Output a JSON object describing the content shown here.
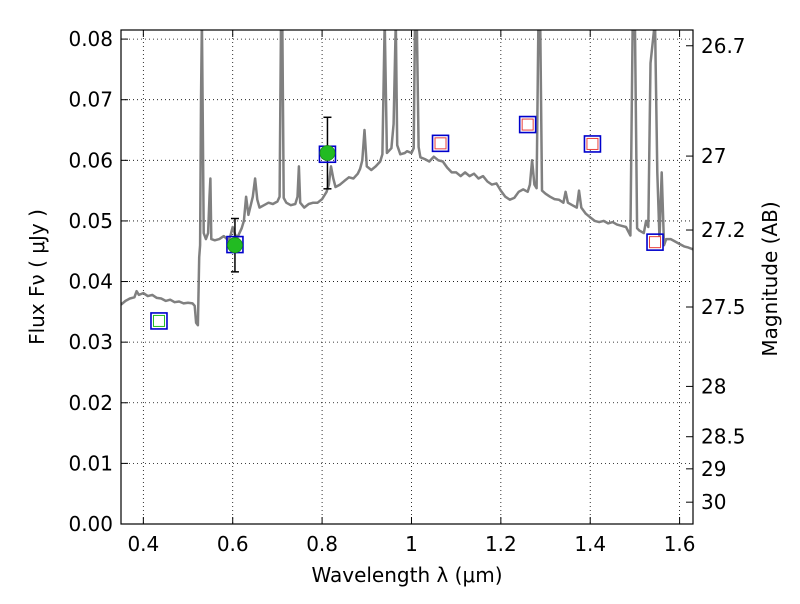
{
  "chart_data": {
    "type": "scatter",
    "xlabel": "Wavelength  λ (μm)",
    "ylabel": "Flux  Fν  ( μJy )",
    "ylabel_right": "Magnitude (AB)",
    "xlim": [
      0.35,
      1.63
    ],
    "ylim": [
      0.0,
      0.0815
    ],
    "grid": true,
    "x_ticks": [
      {
        "value": 0.4,
        "label": "0.4"
      },
      {
        "value": 0.6,
        "label": "0.6"
      },
      {
        "value": 0.8,
        "label": "0.8"
      },
      {
        "value": 1.0,
        "label": "1"
      },
      {
        "value": 1.2,
        "label": "1.2"
      },
      {
        "value": 1.4,
        "label": "1.4"
      },
      {
        "value": 1.6,
        "label": "1.6"
      }
    ],
    "y_ticks": [
      {
        "value": 0.0,
        "label": "0.00"
      },
      {
        "value": 0.01,
        "label": "0.01"
      },
      {
        "value": 0.02,
        "label": "0.02"
      },
      {
        "value": 0.03,
        "label": "0.03"
      },
      {
        "value": 0.04,
        "label": "0.04"
      },
      {
        "value": 0.05,
        "label": "0.05"
      },
      {
        "value": 0.06,
        "label": "0.06"
      },
      {
        "value": 0.07,
        "label": "0.07"
      },
      {
        "value": 0.08,
        "label": "0.08"
      }
    ],
    "right_ticks": [
      {
        "flux": 0.0789,
        "label": "26.7"
      },
      {
        "flux": 0.0607,
        "label": "27"
      },
      {
        "flux": 0.0485,
        "label": "27.2"
      },
      {
        "flux": 0.0358,
        "label": "27.5"
      },
      {
        "flux": 0.0227,
        "label": "28"
      },
      {
        "flux": 0.0144,
        "label": "28.5"
      },
      {
        "flux": 0.0091,
        "label": "29"
      },
      {
        "flux": 0.0036,
        "label": "30"
      }
    ],
    "model_spectrum": {
      "color": "#808080",
      "points": [
        [
          0.35,
          0.0362
        ],
        [
          0.36,
          0.0368
        ],
        [
          0.37,
          0.0372
        ],
        [
          0.38,
          0.0374
        ],
        [
          0.385,
          0.0384
        ],
        [
          0.39,
          0.0378
        ],
        [
          0.4,
          0.0381
        ],
        [
          0.41,
          0.0376
        ],
        [
          0.42,
          0.0378
        ],
        [
          0.43,
          0.0373
        ],
        [
          0.44,
          0.0372
        ],
        [
          0.45,
          0.0368
        ],
        [
          0.46,
          0.037
        ],
        [
          0.47,
          0.0366
        ],
        [
          0.48,
          0.0367
        ],
        [
          0.49,
          0.0364
        ],
        [
          0.5,
          0.0365
        ],
        [
          0.51,
          0.0364
        ],
        [
          0.515,
          0.036
        ],
        [
          0.518,
          0.0332
        ],
        [
          0.522,
          0.0328
        ],
        [
          0.525,
          0.044
        ],
        [
          0.527,
          0.046
        ],
        [
          0.529,
          0.07
        ],
        [
          0.531,
          0.083
        ],
        [
          0.533,
          0.066
        ],
        [
          0.535,
          0.048
        ],
        [
          0.54,
          0.047
        ],
        [
          0.545,
          0.048
        ],
        [
          0.548,
          0.054
        ],
        [
          0.55,
          0.057
        ],
        [
          0.552,
          0.047
        ],
        [
          0.56,
          0.0468
        ],
        [
          0.57,
          0.047
        ],
        [
          0.58,
          0.0475
        ],
        [
          0.59,
          0.0468
        ],
        [
          0.595,
          0.0476
        ],
        [
          0.6,
          0.049
        ],
        [
          0.605,
          0.0478
        ],
        [
          0.61,
          0.0472
        ],
        [
          0.62,
          0.0488
        ],
        [
          0.625,
          0.05
        ],
        [
          0.63,
          0.054
        ],
        [
          0.635,
          0.051
        ],
        [
          0.64,
          0.0525
        ],
        [
          0.645,
          0.054
        ],
        [
          0.65,
          0.057
        ],
        [
          0.655,
          0.0535
        ],
        [
          0.66,
          0.0522
        ],
        [
          0.67,
          0.0526
        ],
        [
          0.68,
          0.053
        ],
        [
          0.69,
          0.0528
        ],
        [
          0.7,
          0.0532
        ],
        [
          0.705,
          0.054
        ],
        [
          0.708,
          0.083
        ],
        [
          0.711,
          0.083
        ],
        [
          0.714,
          0.0538
        ],
        [
          0.72,
          0.053
        ],
        [
          0.73,
          0.0526
        ],
        [
          0.74,
          0.0528
        ],
        [
          0.745,
          0.054
        ],
        [
          0.748,
          0.059
        ],
        [
          0.751,
          0.053
        ],
        [
          0.76,
          0.0522
        ],
        [
          0.77,
          0.0528
        ],
        [
          0.78,
          0.053
        ],
        [
          0.79,
          0.053
        ],
        [
          0.8,
          0.0536
        ],
        [
          0.81,
          0.0548
        ],
        [
          0.815,
          0.056
        ],
        [
          0.82,
          0.059
        ],
        [
          0.825,
          0.057
        ],
        [
          0.83,
          0.0556
        ],
        [
          0.84,
          0.056
        ],
        [
          0.85,
          0.0566
        ],
        [
          0.86,
          0.0572
        ],
        [
          0.87,
          0.057
        ],
        [
          0.88,
          0.0578
        ],
        [
          0.885,
          0.0586
        ],
        [
          0.89,
          0.06
        ],
        [
          0.895,
          0.065
        ],
        [
          0.9,
          0.059
        ],
        [
          0.91,
          0.0584
        ],
        [
          0.92,
          0.059
        ],
        [
          0.93,
          0.0598
        ],
        [
          0.935,
          0.061
        ],
        [
          0.94,
          0.083
        ],
        [
          0.945,
          0.0612
        ],
        [
          0.955,
          0.062
        ],
        [
          0.96,
          0.066
        ],
        [
          0.965,
          0.083
        ],
        [
          0.968,
          0.0625
        ],
        [
          0.975,
          0.061
        ],
        [
          0.985,
          0.0612
        ],
        [
          0.99,
          0.0615
        ],
        [
          1.0,
          0.0612
        ],
        [
          1.005,
          0.062
        ],
        [
          1.008,
          0.083
        ],
        [
          1.012,
          0.083
        ],
        [
          1.016,
          0.0622
        ],
        [
          1.02,
          0.0605
        ],
        [
          1.03,
          0.0602
        ],
        [
          1.04,
          0.0598
        ],
        [
          1.05,
          0.0606
        ],
        [
          1.06,
          0.06
        ],
        [
          1.07,
          0.0598
        ],
        [
          1.08,
          0.0588
        ],
        [
          1.09,
          0.058
        ],
        [
          1.1,
          0.058
        ],
        [
          1.11,
          0.0574
        ],
        [
          1.12,
          0.058
        ],
        [
          1.13,
          0.0574
        ],
        [
          1.14,
          0.0578
        ],
        [
          1.15,
          0.057
        ],
        [
          1.16,
          0.0574
        ],
        [
          1.17,
          0.0565
        ],
        [
          1.18,
          0.056
        ],
        [
          1.19,
          0.0562
        ],
        [
          1.2,
          0.055
        ],
        [
          1.21,
          0.054
        ],
        [
          1.22,
          0.0535
        ],
        [
          1.23,
          0.0538
        ],
        [
          1.24,
          0.0548
        ],
        [
          1.25,
          0.0552
        ],
        [
          1.26,
          0.0548
        ],
        [
          1.265,
          0.056
        ],
        [
          1.27,
          0.06
        ],
        [
          1.275,
          0.056
        ],
        [
          1.28,
          0.0554
        ],
        [
          1.284,
          0.083
        ],
        [
          1.288,
          0.083
        ],
        [
          1.292,
          0.055
        ],
        [
          1.3,
          0.0545
        ],
        [
          1.31,
          0.054
        ],
        [
          1.32,
          0.0536
        ],
        [
          1.33,
          0.0535
        ],
        [
          1.34,
          0.053
        ],
        [
          1.345,
          0.0548
        ],
        [
          1.35,
          0.053
        ],
        [
          1.36,
          0.0526
        ],
        [
          1.37,
          0.0522
        ],
        [
          1.375,
          0.055
        ],
        [
          1.38,
          0.0522
        ],
        [
          1.39,
          0.0512
        ],
        [
          1.4,
          0.0506
        ],
        [
          1.41,
          0.05
        ],
        [
          1.42,
          0.0498
        ],
        [
          1.43,
          0.05
        ],
        [
          1.44,
          0.0496
        ],
        [
          1.45,
          0.0498
        ],
        [
          1.46,
          0.0494
        ],
        [
          1.47,
          0.0492
        ],
        [
          1.48,
          0.049
        ],
        [
          1.49,
          0.0476
        ],
        [
          1.495,
          0.083
        ],
        [
          1.5,
          0.083
        ],
        [
          1.505,
          0.0488
        ],
        [
          1.51,
          0.0484
        ],
        [
          1.52,
          0.048
        ],
        [
          1.525,
          0.05
        ],
        [
          1.53,
          0.049
        ],
        [
          1.535,
          0.076
        ],
        [
          1.545,
          0.083
        ],
        [
          1.55,
          0.058
        ],
        [
          1.555,
          0.047
        ],
        [
          1.56,
          0.058
        ],
        [
          1.565,
          0.046
        ],
        [
          1.57,
          0.047
        ],
        [
          1.58,
          0.047
        ],
        [
          1.59,
          0.0466
        ],
        [
          1.6,
          0.0462
        ],
        [
          1.61,
          0.0458
        ],
        [
          1.62,
          0.0456
        ],
        [
          1.63,
          0.0453
        ]
      ]
    },
    "model_photometry": {
      "marker": "square",
      "color": "#0000cc",
      "points": [
        [
          0.435,
          0.0335
        ],
        [
          0.605,
          0.0461
        ],
        [
          0.812,
          0.061
        ],
        [
          1.065,
          0.0628
        ],
        [
          1.26,
          0.0659
        ],
        [
          1.405,
          0.0627
        ],
        [
          1.545,
          0.0465
        ]
      ]
    },
    "observed_detections": {
      "marker": "circle",
      "color": "#22bb22",
      "points": [
        {
          "x": 0.605,
          "y": 0.046,
          "err": 0.0044
        },
        {
          "x": 0.812,
          "y": 0.0612,
          "err": 0.0059
        }
      ]
    },
    "observed_nondetections": {
      "marker": "square",
      "color": "#e8413c",
      "points": [
        [
          1.065,
          0.0628
        ],
        [
          1.26,
          0.0659
        ],
        [
          1.405,
          0.0627
        ],
        [
          1.545,
          0.0465
        ]
      ]
    },
    "observed_weak": {
      "marker": "square",
      "color": "#22bb22",
      "points": [
        [
          0.435,
          0.0335
        ]
      ]
    }
  }
}
